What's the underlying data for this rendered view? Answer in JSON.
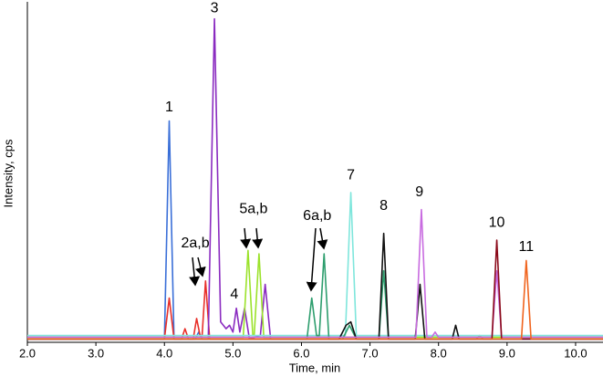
{
  "chart_data": {
    "type": "line",
    "xlabel": "Time, min",
    "ylabel": "Intensity, cps",
    "xlim": [
      2.0,
      10.4
    ],
    "ylim": [
      0,
      100
    ],
    "xticks": [
      {
        "value": 2,
        "label": "2.0"
      },
      {
        "value": 3,
        "label": "3.0"
      },
      {
        "value": 4,
        "label": "4.0"
      },
      {
        "value": 5,
        "label": "5.0"
      },
      {
        "value": 6,
        "label": "6.0"
      },
      {
        "value": 7,
        "label": "7.0"
      },
      {
        "value": 8,
        "label": "8.0"
      },
      {
        "value": 9,
        "label": "9.0"
      },
      {
        "value": 10,
        "label": "10.0"
      }
    ],
    "series": [
      {
        "color": "#3a6fd8",
        "x": [
          2.0,
          4.0,
          4.07,
          4.14,
          4.45,
          4.5,
          4.55,
          10.4
        ],
        "values": [
          1,
          1,
          65,
          1,
          1,
          3,
          1,
          1
        ]
      },
      {
        "color": "#e8302a",
        "x": [
          2.0,
          4.0,
          4.07,
          4.14,
          4.25,
          4.3,
          4.35,
          4.42,
          4.47,
          4.52,
          4.55,
          4.6,
          4.66,
          8.55,
          8.6,
          8.65,
          10.4
        ],
        "values": [
          1,
          1,
          13,
          1,
          1,
          4,
          1,
          1,
          7,
          2,
          2,
          18,
          1,
          1,
          2,
          1,
          1
        ]
      },
      {
        "color": "#8a2bc0",
        "x": [
          2.0,
          4.64,
          4.73,
          4.82,
          4.9,
          4.95,
          5.0,
          5.05,
          5.1,
          5.17,
          5.24,
          5.4,
          5.47,
          5.55,
          10.4
        ],
        "values": [
          1,
          1,
          95,
          6,
          4,
          5,
          3,
          10,
          3,
          10,
          1,
          2,
          17,
          1,
          1
        ]
      },
      {
        "color": "#9be22a",
        "x": [
          2.0,
          5.15,
          5.22,
          5.29,
          5.31,
          5.38,
          5.45,
          10.4
        ],
        "values": [
          1.5,
          1.5,
          27,
          2,
          2,
          26,
          1.5,
          1.5
        ]
      },
      {
        "color": "#7fe6dc",
        "x": [
          2.0,
          6.64,
          6.72,
          6.8,
          10.4
        ],
        "values": [
          2,
          2,
          44,
          2,
          2
        ]
      },
      {
        "color": "#2e9e6e",
        "x": [
          2.0,
          6.08,
          6.15,
          6.22,
          6.26,
          6.33,
          6.4,
          6.6,
          6.7,
          6.8,
          7.13,
          7.2,
          7.27,
          10.4
        ],
        "values": [
          1,
          1,
          13,
          2,
          2,
          26,
          1,
          1,
          5,
          1,
          1,
          21,
          1,
          1
        ]
      },
      {
        "color": "#111111",
        "x": [
          2.0,
          6.55,
          6.65,
          6.72,
          6.8,
          7.13,
          7.2,
          7.27,
          7.66,
          7.73,
          7.8,
          8.2,
          8.25,
          8.3,
          10.4
        ],
        "values": [
          1,
          1,
          5,
          6,
          1,
          1,
          32,
          1,
          1,
          17,
          1,
          1,
          5,
          1,
          1
        ]
      },
      {
        "color": "#c86be0",
        "x": [
          2.0,
          7.67,
          7.75,
          7.83,
          7.9,
          7.95,
          8.0,
          8.78,
          8.85,
          8.92,
          10.4
        ],
        "values": [
          1.5,
          1.5,
          39,
          1.5,
          1.5,
          3,
          1.5,
          1.5,
          21,
          1.5,
          1.5
        ]
      },
      {
        "color": "#8b0a1a",
        "x": [
          2.0,
          8.78,
          8.85,
          8.92,
          10.4
        ],
        "values": [
          1,
          1,
          30,
          1,
          1
        ]
      },
      {
        "color": "#f0641e",
        "x": [
          2.0,
          9.21,
          9.28,
          9.35,
          10.4
        ],
        "values": [
          1,
          1,
          24,
          1,
          1
        ]
      }
    ],
    "annotations": [
      {
        "text": "1",
        "x": 4.07,
        "y": 69
      },
      {
        "text": "2a,b",
        "x": 4.45,
        "y": 29
      },
      {
        "text": "3",
        "x": 4.73,
        "y": 98
      },
      {
        "text": "4",
        "x": 5.02,
        "y": 14
      },
      {
        "text": "5a,b",
        "x": 5.3,
        "y": 39
      },
      {
        "text": "6a,b",
        "x": 6.23,
        "y": 37
      },
      {
        "text": "7",
        "x": 6.72,
        "y": 49
      },
      {
        "text": "8",
        "x": 7.2,
        "y": 40
      },
      {
        "text": "9",
        "x": 7.72,
        "y": 44
      },
      {
        "text": "10",
        "x": 8.85,
        "y": 35
      },
      {
        "text": "11",
        "x": 9.28,
        "y": 28
      }
    ]
  }
}
